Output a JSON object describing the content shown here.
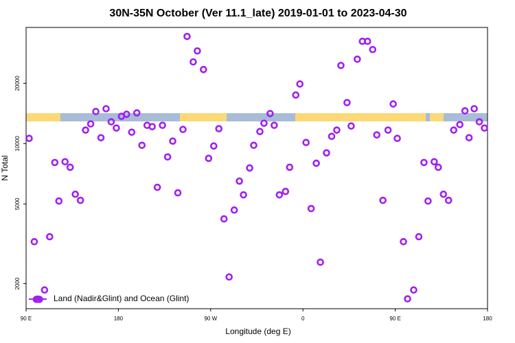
{
  "chart_data": {
    "type": "scatter",
    "title": "30N-35N October (Ver 11.1_late)   2019-01-01 to 2023-04-30",
    "x_label": "Longitude (deg E)",
    "y_label": "N Total",
    "yscale": "log",
    "x": [
      93,
      98,
      100,
      103,
      108,
      113,
      118,
      122,
      128,
      133,
      138,
      143,
      148,
      153,
      158,
      163,
      168,
      173,
      178,
      183,
      188,
      193,
      198,
      203,
      208,
      213,
      218,
      223,
      228,
      233,
      238,
      243,
      247,
      253,
      257,
      263,
      268,
      273,
      278,
      283,
      288,
      293,
      298,
      302,
      308,
      312,
      318,
      322,
      328,
      332,
      337,
      343,
      347,
      353,
      357,
      363,
      368,
      373,
      377,
      383,
      388,
      393,
      397,
      403,
      407,
      413,
      418,
      423,
      428,
      432,
      438,
      443,
      448,
      452,
      458,
      462,
      468,
      473,
      478,
      482,
      488,
      492,
      497,
      502,
      507,
      513,
      518,
      522,
      527,
      532,
      537
    ],
    "series": [
      {
        "name": "Land (Nadir&Glint) and Ocean (Glint)",
        "color": "#a020f0",
        "values": [
          10620,
          3240,
          1670,
          1670,
          1860,
          3430,
          8050,
          5170,
          8120,
          7620,
          5590,
          5210,
          11680,
          12540,
          14460,
          10700,
          14930,
          12850,
          11960,
          13680,
          14010,
          11400,
          14230,
          9810,
          12340,
          12150,
          6050,
          12340,
          8580,
          10290,
          5680,
          11770,
          34260,
          25570,
          29010,
          23430,
          8440,
          9730,
          11870,
          4210,
          2160,
          4660,
          6500,
          5550,
          7560,
          9810,
          11490,
          12640,
          14120,
          12340,
          5550,
          5770,
          7620,
          17480,
          19840,
          10130,
          4740,
          7980,
          2560,
          8990,
          10870,
          11680,
          24560,
          16020,
          12240,
          26380,
          32400,
          32400,
          29470,
          11050,
          5210,
          11680,
          15770,
          10620,
          3240,
          1680,
          1860,
          3430,
          8050,
          5170,
          8120,
          7620,
          5590,
          5210,
          11680,
          12440,
          14570,
          10700,
          14930,
          12850,
          11960
        ]
      }
    ],
    "xlim": [
      90,
      540
    ],
    "ylim": [
      1500,
      38000
    ],
    "xticks": [
      {
        "value": 90,
        "label": "90 E"
      },
      {
        "value": 180,
        "label": "180"
      },
      {
        "value": 270,
        "label": "90 W"
      },
      {
        "value": 360,
        "label": "0"
      },
      {
        "value": 450,
        "label": "90 E"
      },
      {
        "value": 540,
        "label": "180"
      }
    ],
    "yticks": [
      2000,
      5000,
      10000,
      20000
    ],
    "legend": "bottom-left"
  }
}
